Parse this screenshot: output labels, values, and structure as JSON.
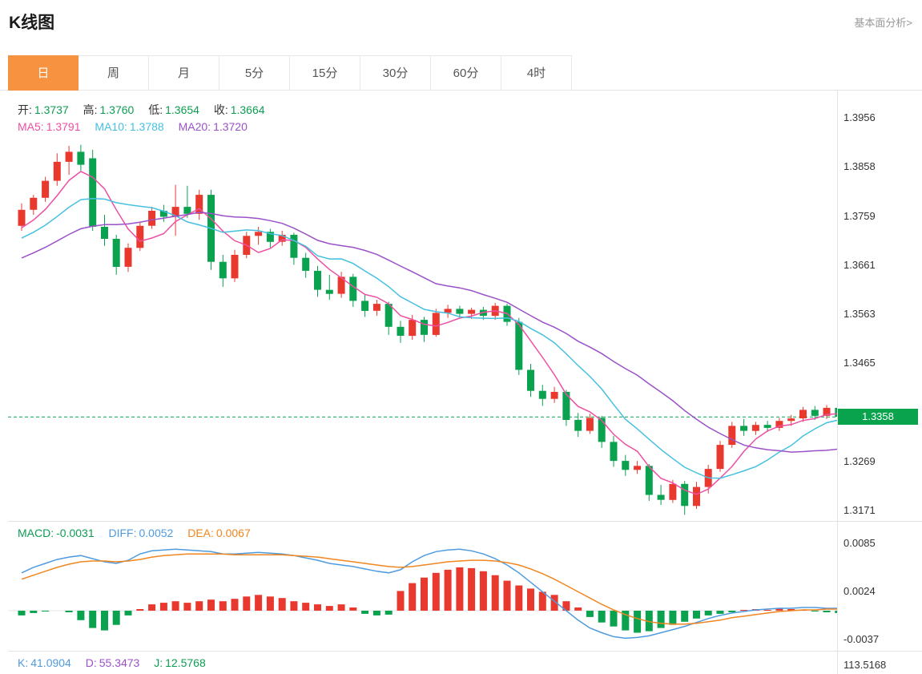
{
  "header": {
    "title": "K线图",
    "link_label": "基本面分析>"
  },
  "tabs": {
    "items": [
      {
        "slug": "day",
        "label": "日",
        "active": true
      },
      {
        "slug": "week",
        "label": "周",
        "active": false
      },
      {
        "slug": "month",
        "label": "月",
        "active": false
      },
      {
        "slug": "m5",
        "label": "5分",
        "active": false
      },
      {
        "slug": "m15",
        "label": "15分",
        "active": false
      },
      {
        "slug": "m30",
        "label": "30分",
        "active": false
      },
      {
        "slug": "m60",
        "label": "60分",
        "active": false
      },
      {
        "slug": "h4",
        "label": "4时",
        "active": false
      }
    ]
  },
  "colors": {
    "up_red": "#e9392e",
    "down_green": "#0aa14f",
    "active_tab_orange": "#f79240",
    "ma5_pink": "#ee4fa3",
    "ma10_cyan": "#46c0e0",
    "ma20_purple": "#9b51c8",
    "diff_blue": "#4f9be0",
    "dea_orange": "#f0861f",
    "price_badge_green": "#09a34e",
    "border_gray": "#e3e3e3",
    "link_gray": "#999999"
  },
  "main_chart": {
    "legend": {
      "open_label": "开:",
      "open_value": "1.3737",
      "high_label": "高:",
      "high_value": "1.3760",
      "low_label": "低:",
      "low_value": "1.3654",
      "close_label": "收:",
      "close_value": "1.3664",
      "ma5_label": "MA5:",
      "ma5_value": "1.3791",
      "ma10_label": "MA10:",
      "ma10_value": "1.3788",
      "ma20_label": "MA20:",
      "ma20_value": "1.3720"
    },
    "y_axis_labels": [
      "1.3956",
      "1.3858",
      "1.3759",
      "1.3661",
      "1.3563",
      "1.3465",
      "1.3269",
      "1.3171"
    ],
    "current_price": "1.3358"
  },
  "macd": {
    "legend": {
      "macd_label": "MACD:",
      "macd_value": "-0.0031",
      "diff_label": "DIFF:",
      "diff_value": "0.0052",
      "dea_label": "DEA:",
      "dea_value": "0.0067"
    },
    "y_axis_labels": [
      "0.0085",
      "0.0024",
      "-0.0037"
    ]
  },
  "kdj": {
    "legend": {
      "k_label": "K:",
      "k_value": "41.0904",
      "d_label": "D:",
      "d_value": "55.3473",
      "j_label": "J:",
      "j_value": "12.5768"
    },
    "y_axis_labels": [
      "113.5168"
    ]
  },
  "chart_data": [
    {
      "type": "candlestick",
      "title": "K线图 日线 (daily candles, red=up green=down)",
      "up_color": "#e9392e",
      "down_color": "#0aa14f",
      "y_ticks": [
        1.3956,
        1.3858,
        1.3759,
        1.3661,
        1.3563,
        1.3465,
        1.3269,
        1.3171
      ],
      "y_range": [
        1.315,
        1.4004
      ],
      "current_price": 1.3358,
      "overlays": [
        {
          "name": "MA5",
          "period": 5,
          "color": "#ee4fa3"
        },
        {
          "name": "MA10",
          "period": 10,
          "color": "#46c0e0"
        },
        {
          "name": "MA20",
          "period": 20,
          "color": "#9b51c8"
        }
      ],
      "seed_closes": [
        1.3585,
        1.3595,
        1.3605,
        1.3615,
        1.3625,
        1.3635,
        1.364,
        1.365,
        1.3658,
        1.3665,
        1.3672,
        1.368,
        1.3688,
        1.3695,
        1.3702,
        1.371,
        1.3718,
        1.3724,
        1.373,
        1.3736
      ],
      "ohlc": [
        [
          1.374,
          1.3785,
          1.373,
          1.3772
        ],
        [
          1.3772,
          1.3802,
          1.3762,
          1.3796
        ],
        [
          1.3796,
          1.3838,
          1.3788,
          1.383
        ],
        [
          1.383,
          1.3885,
          1.382,
          1.3868
        ],
        [
          1.3868,
          1.39,
          1.3842,
          1.3888
        ],
        [
          1.3888,
          1.3902,
          1.385,
          1.3862
        ],
        [
          1.3875,
          1.3892,
          1.373,
          1.3738
        ],
        [
          1.3738,
          1.3762,
          1.37,
          1.3714
        ],
        [
          1.3714,
          1.3722,
          1.3642,
          1.3658
        ],
        [
          1.3658,
          1.3705,
          1.3648,
          1.3696
        ],
        [
          1.3696,
          1.3748,
          1.369,
          1.374
        ],
        [
          1.374,
          1.3778,
          1.3734,
          1.377
        ],
        [
          1.377,
          1.3782,
          1.3748,
          1.3758
        ],
        [
          1.3758,
          1.3822,
          1.372,
          1.3778
        ],
        [
          1.3778,
          1.382,
          1.3756,
          1.3764
        ],
        [
          1.3764,
          1.3812,
          1.3752,
          1.3802
        ],
        [
          1.3802,
          1.3812,
          1.3652,
          1.3668
        ],
        [
          1.3668,
          1.3682,
          1.3618,
          1.3635
        ],
        [
          1.3635,
          1.3692,
          1.3628,
          1.3682
        ],
        [
          1.3682,
          1.3728,
          1.3675,
          1.372
        ],
        [
          1.372,
          1.3738,
          1.3702,
          1.3728
        ],
        [
          1.3728,
          1.3734,
          1.3696,
          1.3708
        ],
        [
          1.3708,
          1.373,
          1.37,
          1.3722
        ],
        [
          1.3722,
          1.3726,
          1.3662,
          1.3676
        ],
        [
          1.3676,
          1.3686,
          1.3636,
          1.365
        ],
        [
          1.365,
          1.366,
          1.3598,
          1.3612
        ],
        [
          1.3612,
          1.3642,
          1.3592,
          1.3604
        ],
        [
          1.3604,
          1.3648,
          1.3596,
          1.3638
        ],
        [
          1.3638,
          1.3644,
          1.3578,
          1.359
        ],
        [
          1.359,
          1.3604,
          1.3558,
          1.357
        ],
        [
          1.357,
          1.3592,
          1.356,
          1.3584
        ],
        [
          1.3584,
          1.3588,
          1.3522,
          1.3538
        ],
        [
          1.3538,
          1.355,
          1.3506,
          1.352
        ],
        [
          1.352,
          1.3562,
          1.3512,
          1.3552
        ],
        [
          1.3552,
          1.3558,
          1.3508,
          1.3522
        ],
        [
          1.3522,
          1.3574,
          1.3518,
          1.3566
        ],
        [
          1.3566,
          1.3582,
          1.3556,
          1.3574
        ],
        [
          1.3574,
          1.358,
          1.3558,
          1.3564
        ],
        [
          1.3564,
          1.3576,
          1.3554,
          1.3572
        ],
        [
          1.3572,
          1.3578,
          1.3552,
          1.356
        ],
        [
          1.356,
          1.3586,
          1.3552,
          1.358
        ],
        [
          1.358,
          1.3584,
          1.354,
          1.3548
        ],
        [
          1.3548,
          1.3556,
          1.3442,
          1.3452
        ],
        [
          1.3452,
          1.3464,
          1.3398,
          1.341
        ],
        [
          1.341,
          1.3422,
          1.338,
          1.3394
        ],
        [
          1.3394,
          1.3418,
          1.3386,
          1.3408
        ],
        [
          1.3408,
          1.3412,
          1.334,
          1.3352
        ],
        [
          1.3352,
          1.3366,
          1.3318,
          1.333
        ],
        [
          1.333,
          1.3364,
          1.3324,
          1.3356
        ],
        [
          1.3356,
          1.336,
          1.3296,
          1.3308
        ],
        [
          1.3308,
          1.332,
          1.3258,
          1.327
        ],
        [
          1.327,
          1.3282,
          1.324,
          1.3252
        ],
        [
          1.3252,
          1.327,
          1.3244,
          1.326
        ],
        [
          1.326,
          1.3264,
          1.319,
          1.3202
        ],
        [
          1.3202,
          1.3222,
          1.3182,
          1.3192
        ],
        [
          1.3192,
          1.3232,
          1.3186,
          1.3224
        ],
        [
          1.3224,
          1.323,
          1.3162,
          1.318
        ],
        [
          1.318,
          1.3228,
          1.3174,
          1.3218
        ],
        [
          1.3218,
          1.3262,
          1.3205,
          1.3254
        ],
        [
          1.3254,
          1.331,
          1.3248,
          1.3302
        ],
        [
          1.3302,
          1.3348,
          1.3296,
          1.334
        ],
        [
          1.334,
          1.3354,
          1.332,
          1.333
        ],
        [
          1.333,
          1.3348,
          1.3322,
          1.3342
        ],
        [
          1.3342,
          1.335,
          1.3328,
          1.3336
        ],
        [
          1.3336,
          1.3356,
          1.333,
          1.335
        ],
        [
          1.335,
          1.3362,
          1.334,
          1.3355
        ],
        [
          1.3355,
          1.3378,
          1.3348,
          1.3372
        ],
        [
          1.3372,
          1.338,
          1.3352,
          1.336
        ],
        [
          1.336,
          1.3382,
          1.3354,
          1.3376
        ],
        [
          1.3376,
          1.338,
          1.3348,
          1.3358
        ]
      ]
    },
    {
      "type": "bar",
      "name": "MACD",
      "positive_color": "#e9392e",
      "negative_color": "#0aa14f",
      "y_ticks": [
        0.0085,
        0.0024,
        -0.0037
      ],
      "y_range": [
        -0.00509,
        0.01129
      ],
      "histogram": [
        -0.0006,
        -0.0003,
        -0.0001,
        0.0,
        -0.0002,
        -0.0012,
        -0.0022,
        -0.0025,
        -0.0018,
        -0.0006,
        0.0002,
        0.0008,
        0.001,
        0.0012,
        0.001,
        0.0012,
        0.0014,
        0.0012,
        0.0015,
        0.0018,
        0.002,
        0.0018,
        0.0016,
        0.0012,
        0.001,
        0.0008,
        0.0006,
        0.0008,
        0.0004,
        -0.0004,
        -0.0006,
        -0.0005,
        0.0025,
        0.0035,
        0.0042,
        0.0048,
        0.0052,
        0.0055,
        0.0054,
        0.005,
        0.0045,
        0.0038,
        0.0032,
        0.0028,
        0.0024,
        0.002,
        0.0012,
        0.0004,
        -0.0008,
        -0.0015,
        -0.002,
        -0.0025,
        -0.0028,
        -0.0026,
        -0.0022,
        -0.0018,
        -0.0014,
        -0.001,
        -0.0006,
        -0.0004,
        -0.0002,
        0.0001,
        0.0002,
        0.0001,
        0.0003,
        0.0002,
        0.0001,
        -0.0001,
        -0.0002,
        -0.0003
      ],
      "series": [
        {
          "name": "DIFF",
          "color": "#4f9be0",
          "values": [
            0.0048,
            0.0055,
            0.006,
            0.0065,
            0.0068,
            0.007,
            0.0066,
            0.0062,
            0.006,
            0.0064,
            0.0072,
            0.0076,
            0.0077,
            0.0078,
            0.0077,
            0.0076,
            0.0075,
            0.0072,
            0.0072,
            0.0073,
            0.0074,
            0.0073,
            0.0072,
            0.007,
            0.0067,
            0.0064,
            0.006,
            0.0058,
            0.0056,
            0.0053,
            0.005,
            0.0048,
            0.0052,
            0.0062,
            0.007,
            0.0075,
            0.0077,
            0.0078,
            0.0076,
            0.0072,
            0.0066,
            0.0058,
            0.0048,
            0.0036,
            0.0024,
            0.0012,
            0.0,
            -0.0012,
            -0.0022,
            -0.0028,
            -0.0033,
            -0.0035,
            -0.0034,
            -0.0032,
            -0.0028,
            -0.0024,
            -0.002,
            -0.0015,
            -0.001,
            -0.0006,
            -0.0003,
            -0.0001,
            0.0001,
            0.0002,
            0.0003,
            0.0003,
            0.0004,
            0.0004,
            0.0003,
            0.0003
          ]
        },
        {
          "name": "DEA",
          "color": "#f0861f",
          "values": [
            0.004,
            0.0045,
            0.005,
            0.0055,
            0.0059,
            0.0062,
            0.0063,
            0.0063,
            0.0062,
            0.0063,
            0.0065,
            0.0068,
            0.007,
            0.0071,
            0.0072,
            0.0072,
            0.0072,
            0.0072,
            0.0071,
            0.0071,
            0.0071,
            0.0071,
            0.0071,
            0.007,
            0.0069,
            0.0068,
            0.0066,
            0.0064,
            0.0062,
            0.006,
            0.0058,
            0.0056,
            0.0055,
            0.0056,
            0.0058,
            0.006,
            0.0062,
            0.0063,
            0.0064,
            0.0064,
            0.0063,
            0.0061,
            0.0058,
            0.0053,
            0.0047,
            0.004,
            0.0032,
            0.0024,
            0.0016,
            0.0008,
            0.0001,
            -0.0005,
            -0.001,
            -0.0014,
            -0.0016,
            -0.0017,
            -0.0017,
            -0.0016,
            -0.0014,
            -0.0012,
            -0.0009,
            -0.0007,
            -0.0005,
            -0.0003,
            -0.0001,
            0.0,
            0.0001,
            0.0001,
            0.0002,
            0.0002
          ]
        }
      ]
    },
    {
      "type": "line",
      "name": "KDJ",
      "k": 41.0904,
      "d": 55.3473,
      "j": 12.5768,
      "visible_y_tick": 113.5168
    }
  ]
}
